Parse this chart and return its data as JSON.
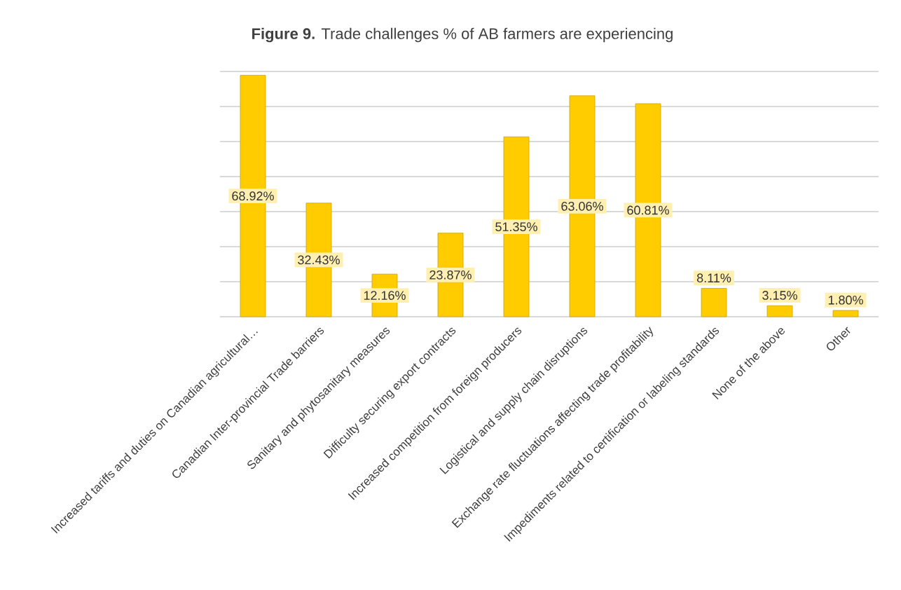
{
  "chart_data": {
    "type": "bar",
    "title": "**Figure 9.** Trade challenges % of AB farmers are experiencing",
    "categories": [
      "Increased tariffs and duties on Canadian agricultural…",
      "Canadian Inter-provincial Trade barriers",
      "Sanitary and phytosanitary measures",
      "Difficulty securing export contracts",
      "Increased competition from foreign producers",
      "Logistical and supply chain disruptions",
      "Exchange rate fluctuations affecting trade profitability",
      "Impediments related to certification or labeling standards",
      "None of the above",
      "Other"
    ],
    "values": [
      68.92,
      32.43,
      12.16,
      23.87,
      51.35,
      63.06,
      60.81,
      8.11,
      3.15,
      1.8
    ],
    "value_labels": [
      "68.92%",
      "32.43%",
      "12.16%",
      "23.87%",
      "51.35%",
      "63.06%",
      "60.81%",
      "8.11%",
      "3.15%",
      "1.80%"
    ],
    "color": "#ffcc00",
    "ylim": [
      0,
      70
    ],
    "yticks": [
      {
        "value": 0,
        "label": null
      },
      {
        "value": 10,
        "label": null
      },
      {
        "value": 20,
        "label": null
      },
      {
        "value": 30,
        "label": null
      },
      {
        "value": 40,
        "label": null
      },
      {
        "value": 50,
        "label": null
      },
      {
        "value": 60,
        "label": null
      },
      {
        "value": 70,
        "label": null
      }
    ],
    "tick_labels": "x",
    "grid": "y"
  }
}
